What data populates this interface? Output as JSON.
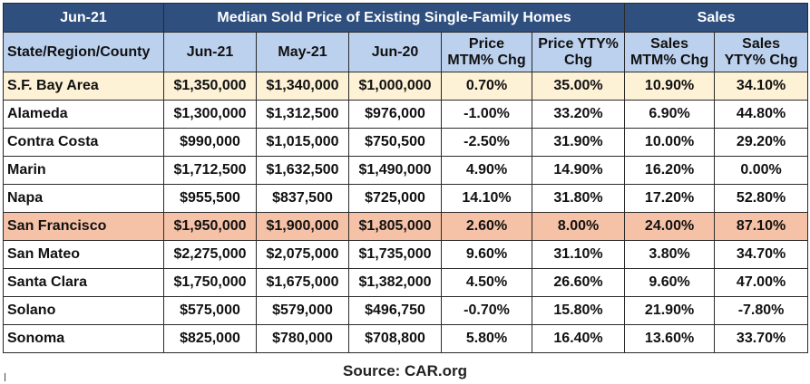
{
  "chart_data": {
    "type": "table",
    "top_header": {
      "period": "Jun-21",
      "price_group": "Median Sold Price of Existing Single-Family Homes",
      "sales_group": "Sales"
    },
    "columns": [
      "State/Region/County",
      "Jun-21",
      "May-21",
      "Jun-20",
      "Price\nMTM% Chg",
      "Price YTY%\nChg",
      "Sales\nMTM% Chg",
      "Sales\nYTY% Chg"
    ],
    "rows": [
      [
        "S.F. Bay Area",
        "$1,350,000",
        "$1,340,000",
        "$1,000,000",
        "0.70%",
        "35.00%",
        "10.90%",
        "34.10%"
      ],
      [
        "Alameda",
        "$1,300,000",
        "$1,312,500",
        "$976,000",
        "-1.00%",
        "33.20%",
        "6.90%",
        "44.80%"
      ],
      [
        "Contra Costa",
        "$990,000",
        "$1,015,000",
        "$750,500",
        "-2.50%",
        "31.90%",
        "10.00%",
        "29.20%"
      ],
      [
        "Marin",
        "$1,712,500",
        "$1,632,500",
        "$1,490,000",
        "4.90%",
        "14.90%",
        "16.20%",
        "0.00%"
      ],
      [
        "Napa",
        "$955,500",
        "$837,500",
        "$725,000",
        "14.10%",
        "31.80%",
        "17.20%",
        "52.80%"
      ],
      [
        "San Francisco",
        "$1,950,000",
        "$1,900,000",
        "$1,805,000",
        "2.60%",
        "8.00%",
        "24.00%",
        "87.10%"
      ],
      [
        "San Mateo",
        "$2,275,000",
        "$2,075,000",
        "$1,735,000",
        "9.60%",
        "31.10%",
        "3.80%",
        "34.70%"
      ],
      [
        "Santa Clara",
        "$1,750,000",
        "$1,675,000",
        "$1,382,000",
        "4.50%",
        "26.60%",
        "9.60%",
        "47.00%"
      ],
      [
        "Solano",
        "$575,000",
        "$579,000",
        "$496,750",
        "-0.70%",
        "15.80%",
        "21.90%",
        "-7.80%"
      ],
      [
        "Sonoma",
        "$825,000",
        "$780,000",
        "$708,800",
        "5.80%",
        "16.40%",
        "13.60%",
        "33.70%"
      ]
    ],
    "highlight_rows": {
      "S.F. Bay Area": "#fdf1d6",
      "San Francisco": "#f6c2a7"
    },
    "source": "Source: CAR.org",
    "colors": {
      "top_header_bg": "#2f4f7f",
      "column_header_bg": "#bcd1ee"
    }
  }
}
